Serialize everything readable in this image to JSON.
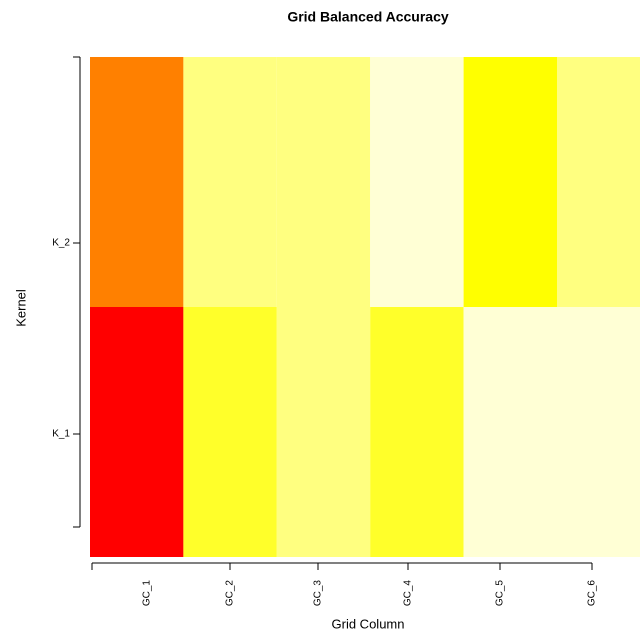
{
  "chart_data": {
    "type": "heatmap",
    "title": "Grid Balanced Accuracy",
    "x_label": "Grid Column",
    "y_label": "Kernel",
    "categories": [
      "GC_1",
      "GC_2",
      "GC_3",
      "GC_4",
      "GC_5",
      "GC_6"
    ],
    "rows": [
      "K_1",
      "K_2"
    ],
    "cell_colors": [
      [
        "#FF0000",
        "#FFFF2A",
        "#FFFF80",
        "#FFFF2A",
        "#FFFFD5",
        "#FFFFD5"
      ],
      [
        "#FF8000",
        "#FFFF80",
        "#FFFF80",
        "#FFFFD5",
        "#FFFF00",
        "#FFFF80"
      ]
    ]
  }
}
